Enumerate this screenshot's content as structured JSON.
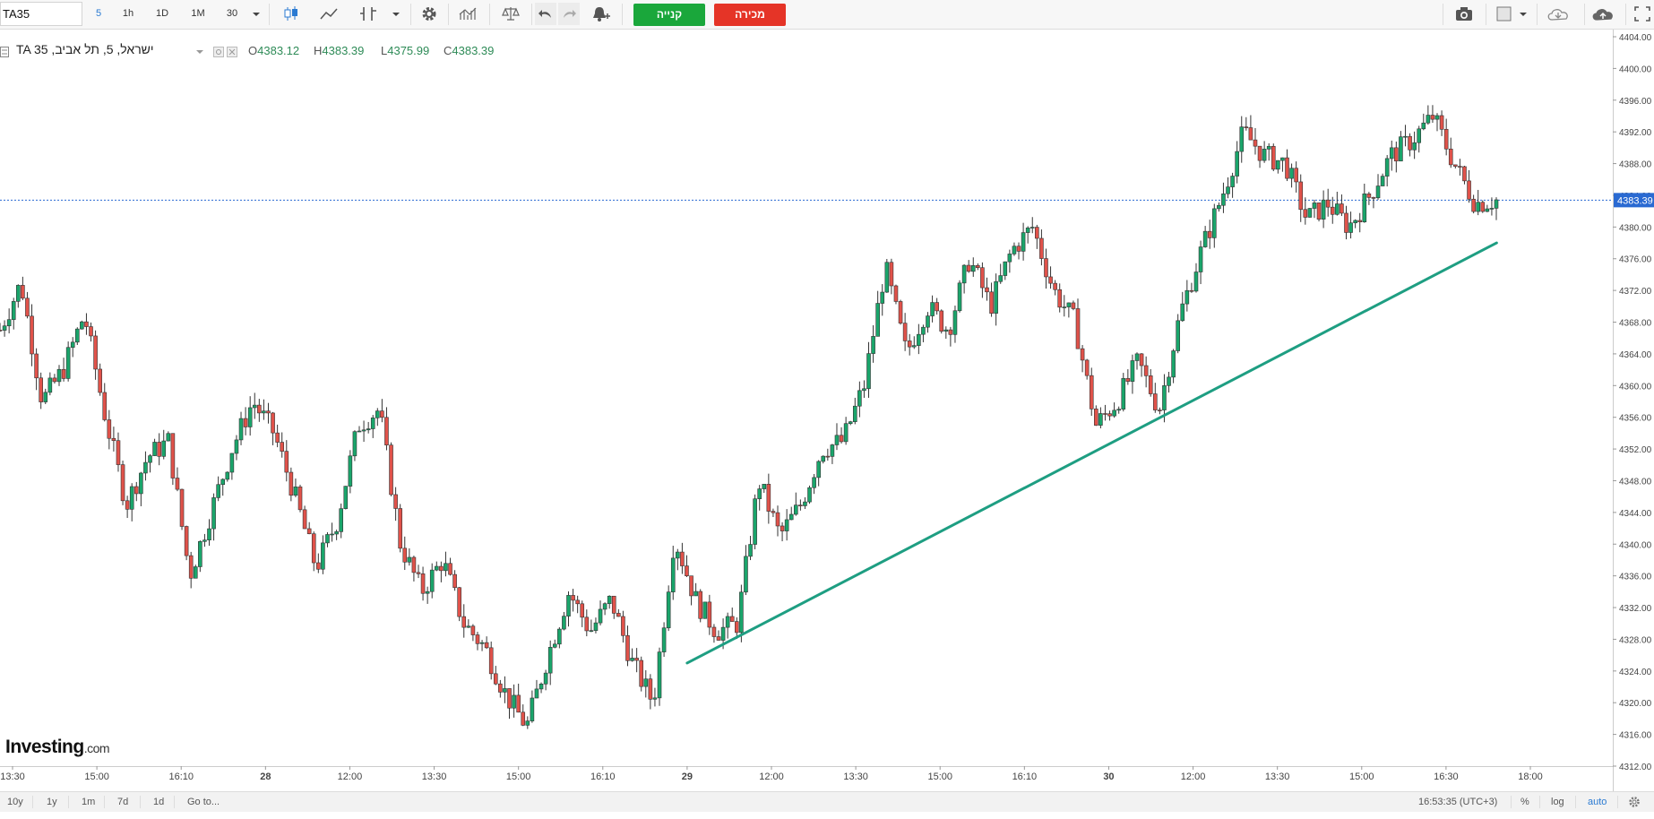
{
  "toolbar": {
    "symbol": "TA35",
    "intervals": [
      {
        "label": "5",
        "active": true
      },
      {
        "label": "1h",
        "active": false
      },
      {
        "label": "1D",
        "active": false
      },
      {
        "label": "1M",
        "active": false
      },
      {
        "label": "30",
        "active": false
      }
    ],
    "buy_label": "קנייה",
    "sell_label": "מכירה"
  },
  "legend": {
    "title": "TA 35 ,ישראל, 5, תל אביב",
    "open_label": "O",
    "open": "4383.12",
    "high_label": "H",
    "high": "4383.39",
    "low_label": "L",
    "low": "4375.99",
    "close_label": "C",
    "close": "4383.39"
  },
  "bottom": {
    "ranges": [
      "10y",
      "1y",
      "1m",
      "7d",
      "1d"
    ],
    "goto": "Go to...",
    "time": "16:53:35 (UTC+3)",
    "percent": "%",
    "log": "log",
    "auto": "auto"
  },
  "logo": {
    "main": "Investing",
    "suffix": ".com"
  },
  "colors": {
    "up": "#1aa56b",
    "down": "#e0524a",
    "trend": "#1e9e82",
    "price_line": "#2a6ad2"
  },
  "chart_data": {
    "type": "candlestick",
    "price_axis": {
      "min": 4312,
      "max": 4404,
      "step": 4,
      "ticks": [
        "4312.00",
        "4316.00",
        "4320.00",
        "4324.00",
        "4328.00",
        "4332.00",
        "4336.00",
        "4340.00",
        "4344.00",
        "4348.00",
        "4352.00",
        "4356.00",
        "4360.00",
        "4364.00",
        "4368.00",
        "4372.00",
        "4376.00",
        "4380.00",
        "4384.00",
        "4388.00",
        "4392.00",
        "4396.00",
        "4400.00",
        "4404.00"
      ]
    },
    "time_axis": [
      "13:30",
      "15:00",
      "16:10",
      "28",
      "12:00",
      "13:30",
      "15:00",
      "16:10",
      "29",
      "12:00",
      "13:30",
      "15:00",
      "16:10",
      "30",
      "12:00",
      "13:30",
      "15:00",
      "16:30",
      "18:00"
    ],
    "last_price": "4383.39",
    "anchors": [
      4367,
      4373,
      4358,
      4362,
      4369,
      4356,
      4345,
      4351,
      4353,
      4336,
      4344,
      4352,
      4358,
      4354,
      4346,
      4337,
      4343,
      4355,
      4357,
      4340,
      4334,
      4338,
      4330,
      4327,
      4321,
      4317,
      4326,
      4334,
      4329,
      4333,
      4325,
      4320,
      4341,
      4333,
      4329,
      4330,
      4348,
      4341,
      4345,
      4352,
      4353,
      4360,
      4375,
      4364,
      4370,
      4367,
      4376,
      4370,
      4377,
      4380,
      4372,
      4368,
      4355,
      4358,
      4363,
      4357,
      4369,
      4377,
      4384,
      4392,
      4389,
      4388,
      4381,
      4383,
      4380,
      4384,
      4389,
      4391,
      4394,
      4388,
      4383,
      4383.39
    ],
    "trendline": [
      {
        "time": "29 09:45",
        "price": 4325
      },
      {
        "time": "30 17:10",
        "price": 4378
      }
    ]
  }
}
